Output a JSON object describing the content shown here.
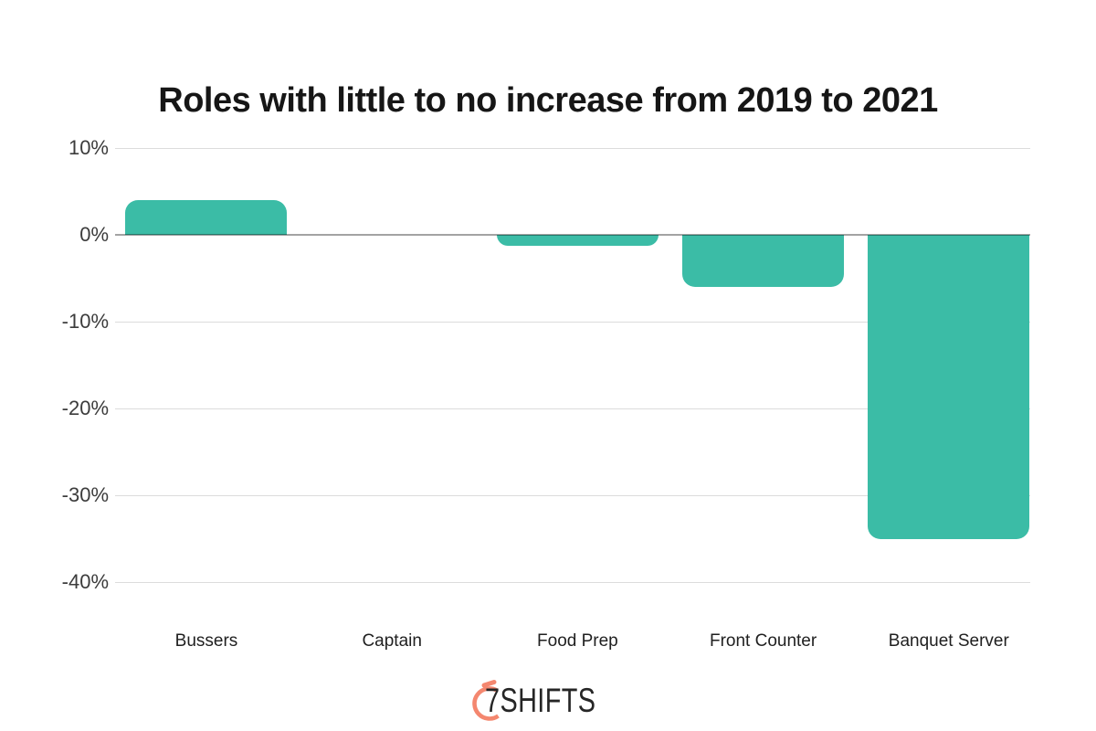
{
  "page": {
    "title": "Roles with little to no increase from 2019 to 2021",
    "background_color": "#ffffff"
  },
  "chart_data": {
    "type": "bar",
    "title": "Roles with little to no increase from 2019 to 2021",
    "categories": [
      "Bussers",
      "Captain",
      "Food Prep",
      "Front Counter",
      "Banquet Server"
    ],
    "values": [
      4,
      0,
      -1.3,
      -6,
      -35
    ],
    "unit": "%",
    "xlabel": "",
    "ylabel": "",
    "ylim": [
      -40,
      10
    ],
    "y_ticks": [
      10,
      0,
      -10,
      -20,
      -30,
      -40
    ],
    "y_tick_labels": [
      "10%",
      "0%",
      "-10%",
      "-20%",
      "-30%",
      "-40%"
    ],
    "grid": "horizontal gridlines on, darker zero baseline",
    "legend": "none",
    "bar_color": "#3bbca6",
    "gridline_color": "#dcdcdc",
    "zero_line_color": "#a3a3a3",
    "tick_label_color": "#3c3c3c"
  },
  "logo": {
    "text": "7SHIFTS",
    "icon": "stopwatch-arc-icon",
    "icon_color": "#f4876f",
    "text_color": "#262626"
  }
}
